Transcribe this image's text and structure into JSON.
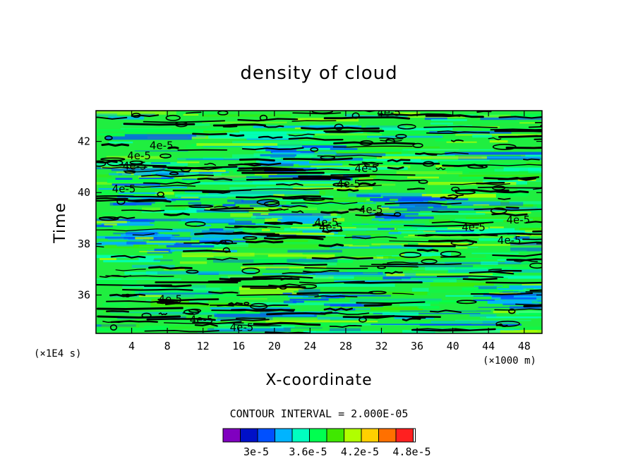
{
  "chart_data": {
    "type": "heatmap",
    "title": "density of cloud",
    "xlabel": "X-coordinate",
    "ylabel": "Time",
    "x_unit": "(×1000 m)",
    "y_unit": "(×1E4 s)",
    "xlim": [
      0,
      50
    ],
    "ylim": [
      34.5,
      43.2
    ],
    "x_ticks": [
      4,
      8,
      12,
      16,
      20,
      24,
      28,
      32,
      36,
      40,
      44,
      48
    ],
    "x_tick_labels": [
      "4",
      "8",
      "12",
      "16",
      "20",
      "24",
      "28",
      "32",
      "36",
      "40",
      "44",
      "48"
    ],
    "y_ticks": [
      36,
      38,
      40,
      42
    ],
    "y_tick_labels": [
      "36",
      "38",
      "40",
      "42"
    ],
    "contour_interval": "CONTOUR INTERVAL = 2.000E-05",
    "contour_label": "4e-5",
    "contour_labels": [
      {
        "x": 31.5,
        "y": 43.0
      },
      {
        "x": 6.0,
        "y": 41.7
      },
      {
        "x": 3.5,
        "y": 41.3
      },
      {
        "x": 3.0,
        "y": 40.9
      },
      {
        "x": 29.0,
        "y": 40.8
      },
      {
        "x": 27.0,
        "y": 40.2
      },
      {
        "x": 1.8,
        "y": 40.0
      },
      {
        "x": 29.5,
        "y": 39.2
      },
      {
        "x": 24.5,
        "y": 38.7
      },
      {
        "x": 25.0,
        "y": 38.5
      },
      {
        "x": 41.0,
        "y": 38.5
      },
      {
        "x": 46.0,
        "y": 38.8
      },
      {
        "x": 45.0,
        "y": 38.0
      },
      {
        "x": 7.0,
        "y": 35.7
      },
      {
        "x": 10.5,
        "y": 34.9
      },
      {
        "x": 15.0,
        "y": 34.6
      }
    ],
    "colorbar": {
      "colors": [
        "#8000c0",
        "#0010c8",
        "#0050ff",
        "#00b4ff",
        "#00ffc0",
        "#00ff50",
        "#40e800",
        "#b0ff00",
        "#ffd000",
        "#ff7000",
        "#ff2020"
      ],
      "tick_labels": [
        "3e-5",
        "3.6e-5",
        "4.2e-5",
        "4.8e-5"
      ]
    }
  }
}
